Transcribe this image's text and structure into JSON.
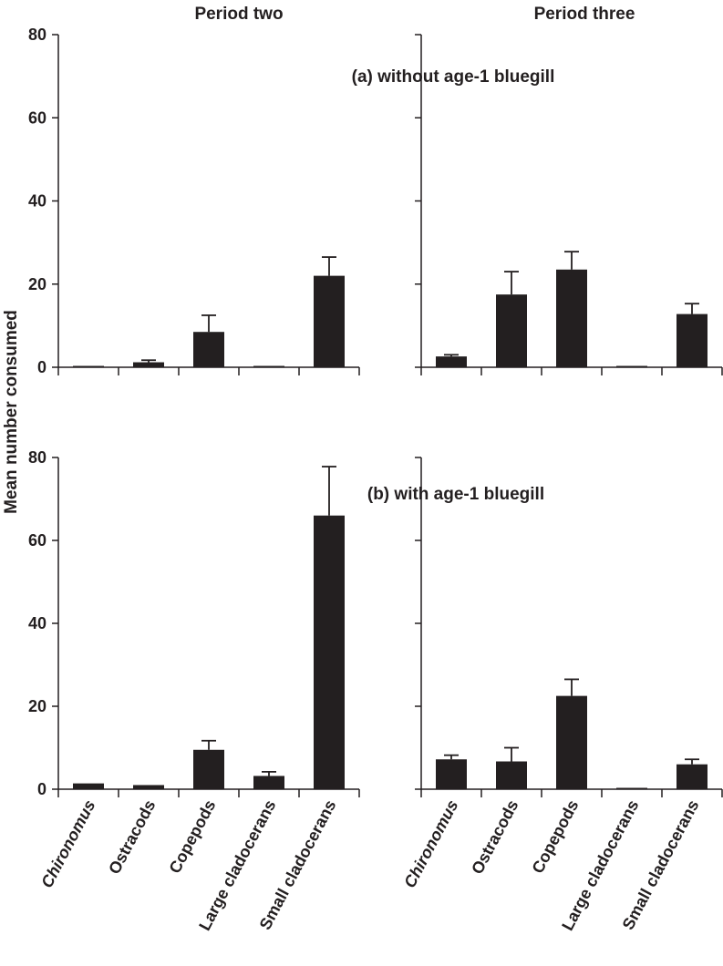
{
  "chart_data": {
    "type": "bar",
    "ylabel": "Mean number consumed",
    "column_titles": [
      "Period two",
      "Period three"
    ],
    "panel_titles": [
      "(a) without age-1 bluegill",
      "(b) with age-1 bluegill"
    ],
    "categories": [
      "Chironomus",
      "Ostracods",
      "Copepods",
      "Large cladocerans",
      "Small cladocerans"
    ],
    "italic_categories": [
      "Chironomus"
    ],
    "yticks": [
      0,
      20,
      40,
      60,
      80
    ],
    "ylim": [
      0,
      80
    ],
    "bar_color": "#231f20",
    "panels": [
      {
        "row": 0,
        "col": 0,
        "values": [
          0.2,
          1.2,
          8.5,
          0.1,
          22.0
        ],
        "errors": [
          0.1,
          0.5,
          4.0,
          0.1,
          4.5
        ]
      },
      {
        "row": 0,
        "col": 1,
        "values": [
          2.6,
          17.5,
          23.5,
          0.1,
          12.8
        ],
        "errors": [
          0.4,
          5.5,
          4.3,
          0.1,
          2.5
        ]
      },
      {
        "row": 1,
        "col": 0,
        "values": [
          1.4,
          1.0,
          9.5,
          3.2,
          66.0
        ],
        "errors": [
          0.3,
          0.3,
          2.2,
          1.0,
          11.8
        ]
      },
      {
        "row": 1,
        "col": 1,
        "values": [
          7.2,
          6.7,
          22.5,
          0.1,
          6.0
        ],
        "errors": [
          1.0,
          3.3,
          4.0,
          0.1,
          1.2
        ]
      }
    ]
  }
}
